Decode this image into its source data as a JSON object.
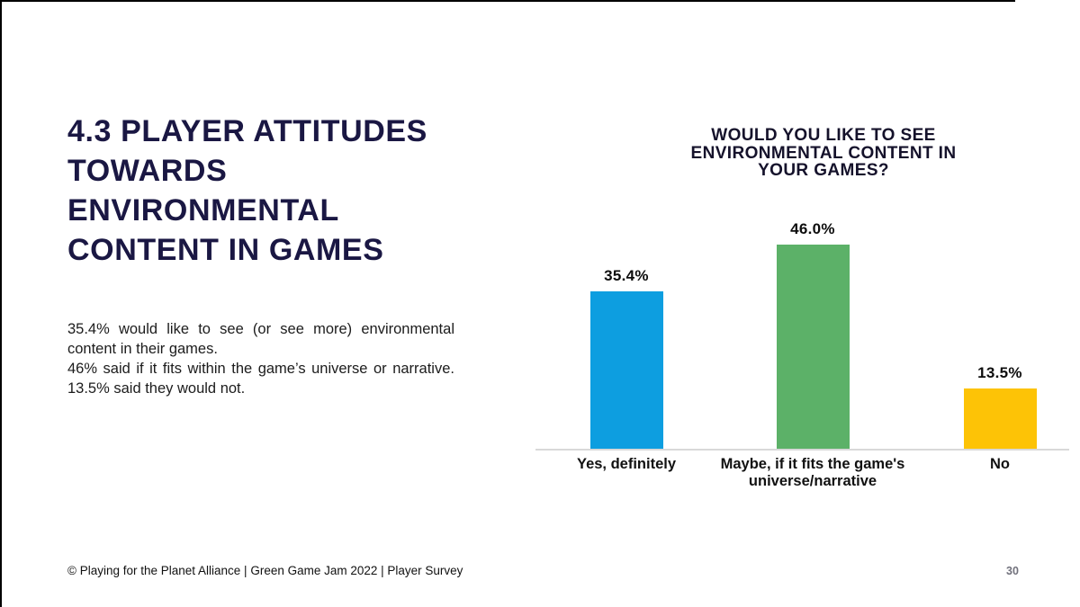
{
  "page": {
    "title_lines": [
      "4.3 PLAYER ATTITUDES",
      "TOWARDS",
      "ENVIRONMENTAL",
      "CONTENT IN GAMES"
    ],
    "body": {
      "p1": "35.4% would like to see (or see more) environmental content in their games.",
      "p2": "46% said if it fits within the game’s universe or narrative. 13.5% said they would not."
    },
    "footer": "© Playing for the Planet Alliance | Green Game Jam 2022 | Player Survey",
    "page_number": "30"
  },
  "colors": {
    "title_navy": "#1A1743",
    "chart_title": "#15122B",
    "axis_gray": "#D9D9D9",
    "page_number_gray": "#71717C"
  },
  "chart_data": {
    "type": "bar",
    "title": "WOULD YOU LIKE TO SEE ENVIRONMENTAL CONTENT IN YOUR GAMES?",
    "title_lines": [
      "WOULD YOU LIKE TO SEE",
      "ENVIRONMENTAL CONTENT IN",
      "YOUR GAMES?"
    ],
    "categories": [
      "Yes, definitely",
      "Maybe, if it fits the game's universe/narrative",
      "No"
    ],
    "values": [
      35.4,
      46.0,
      13.5
    ],
    "value_labels": [
      "35.4%",
      "46.0%",
      "13.5%"
    ],
    "bar_colors": [
      "#0D9EE0",
      "#5CB168",
      "#FDC306"
    ],
    "xlabel": "",
    "ylabel": "",
    "ylim": [
      0,
      50
    ],
    "grid": false,
    "legend": "none"
  }
}
